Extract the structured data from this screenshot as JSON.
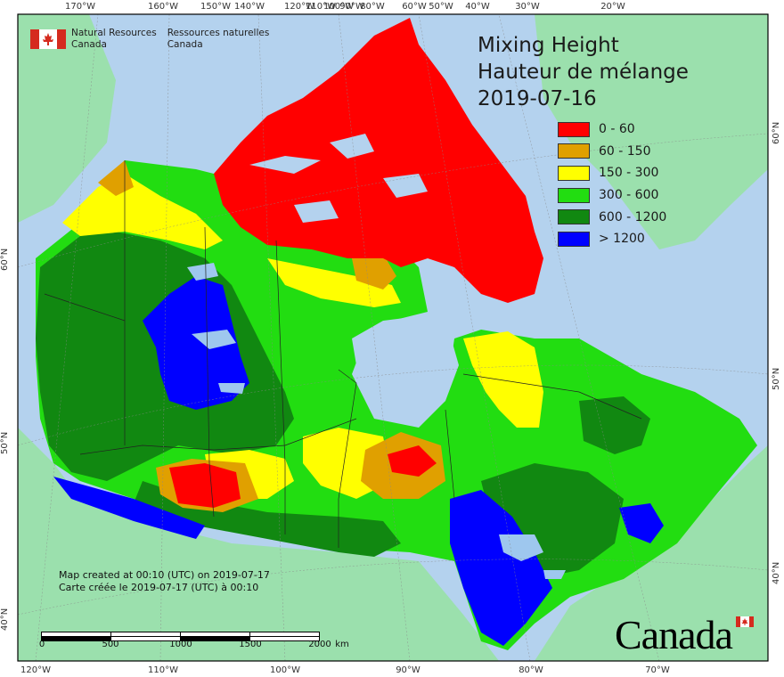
{
  "title": {
    "line1": "Mixing Height",
    "line2": "Hauteur de mélange",
    "date": "2019-07-16"
  },
  "legend": [
    {
      "label": "0 - 60",
      "color": "#ff0000"
    },
    {
      "label": "60 - 150",
      "color": "#e0a000"
    },
    {
      "label": "150 - 300",
      "color": "#ffff00"
    },
    {
      "label": "300 - 600",
      "color": "#22dd11"
    },
    {
      "label": "600 - 1200",
      "color": "#118811"
    },
    {
      "label": "> 1200",
      "color": "#0000ff"
    }
  ],
  "agency": {
    "en_line1": "Natural Resources",
    "en_line2": "Canada",
    "fr_line1": "Ressources naturelles",
    "fr_line2": "Canada"
  },
  "credit": {
    "en": "Map created at 00:10 (UTC) on 2019-07-17",
    "fr": "Carte créée le 2019-07-17 (UTC) à 00:10"
  },
  "scale_bar": {
    "labels": [
      "0",
      "500",
      "1000",
      "1500",
      "2000"
    ],
    "unit": "km"
  },
  "wordmark": "Canada",
  "graticule": {
    "top": [
      "170°W",
      "160°W",
      "150°W",
      "140°W",
      "120°W",
      "110°W",
      "100°W",
      "90°W",
      "80°W",
      "60°W",
      "50°W",
      "40°W",
      "30°W",
      "20°W"
    ],
    "bottom": [
      "120°W",
      "110°W",
      "100°W",
      "90°W",
      "80°W",
      "70°W"
    ],
    "left": [
      "60°N",
      "50°N",
      "40°N"
    ],
    "right": [
      "60°N",
      "50°N",
      "40°N"
    ]
  },
  "colors": {
    "ocean": "#b4d2ee",
    "land": "#9be0ad",
    "frame": "#000000"
  }
}
